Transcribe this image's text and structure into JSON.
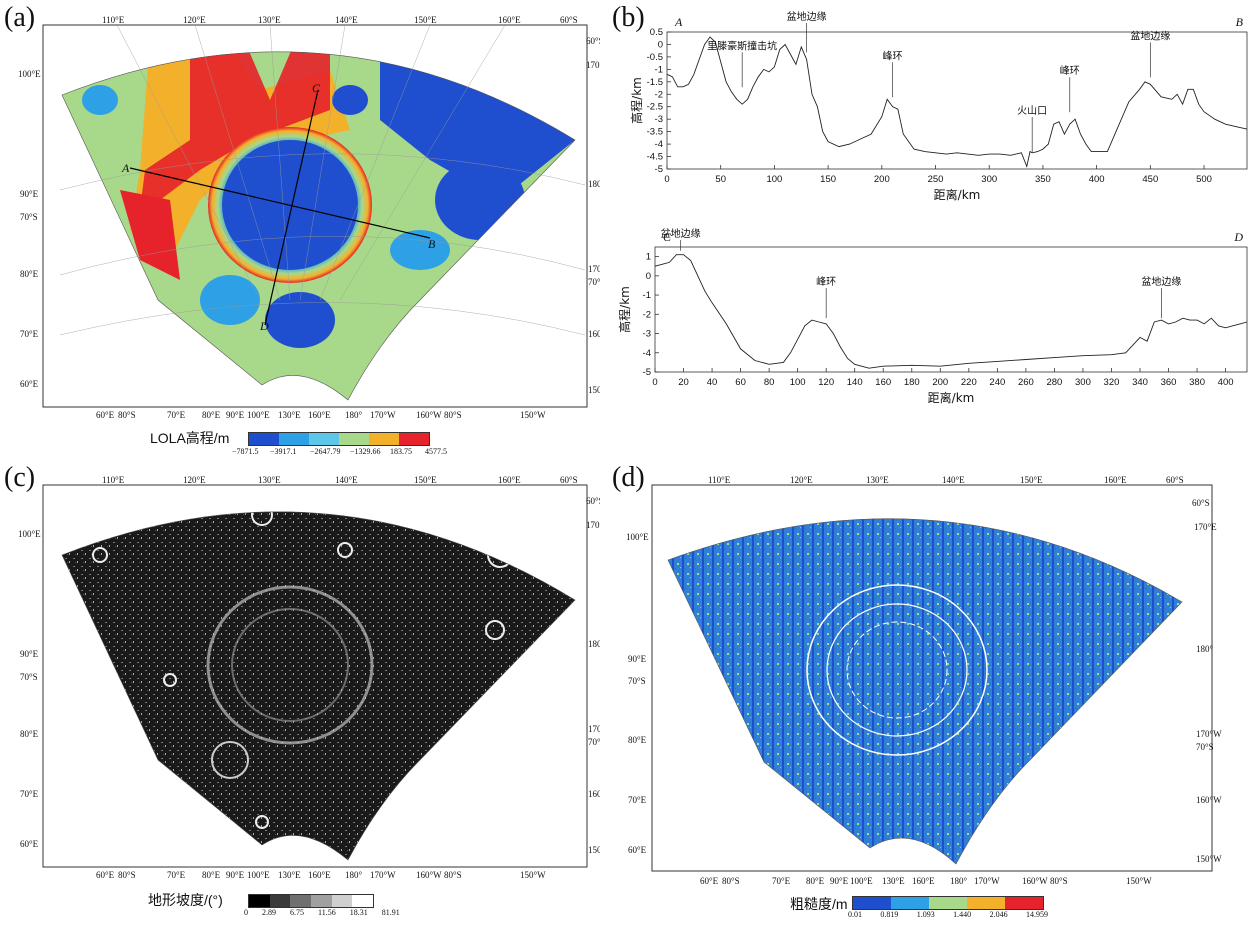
{
  "panels": {
    "a": {
      "letter": "(a)"
    },
    "b": {
      "letter": "(b)"
    },
    "c": {
      "letter": "(c)"
    },
    "d": {
      "letter": "(d)"
    }
  },
  "map_labels": {
    "top": [
      "110°E",
      "120°E",
      "130°E",
      "140°E",
      "150°E",
      "160°E",
      "60°S"
    ],
    "right": [
      "60°S",
      "170°E",
      "180°",
      "170°W",
      "70°S",
      "160°W",
      "150°W"
    ],
    "left": [
      "100°E",
      "90°E",
      "70°S",
      "80°E",
      "70°E",
      "60°E"
    ],
    "bottom": [
      "60°E",
      "80°S",
      "70°E",
      "80°E",
      "90°E",
      "100°E",
      "130°E",
      "160°E",
      "180°",
      "170°W",
      "160°W",
      "80°S",
      "150°W"
    ],
    "profile_ends": [
      "A",
      "B",
      "C",
      "D"
    ]
  },
  "colorbars": {
    "a": {
      "title": "LOLA高程/m",
      "ticks": [
        "−7871.5",
        "−3917.1",
        "−2647.79",
        "−1329.66",
        "183.75",
        "4577.5"
      ],
      "colors": [
        "#1f4fcf",
        "#2ea0e6",
        "#5cc7e8",
        "#a8d88a",
        "#f3b12b",
        "#e6222a"
      ]
    },
    "c": {
      "title": "地形坡度/(°)",
      "ticks": [
        "0",
        "2.89",
        "6.75",
        "11.56",
        "18.31",
        "81.91"
      ],
      "colors": [
        "#000000",
        "#3a3a3a",
        "#707070",
        "#a0a0a0",
        "#d0d0d0",
        "#ffffff"
      ]
    },
    "d": {
      "title": "粗糙度/m",
      "ticks": [
        "0.01",
        "0.819",
        "1.093",
        "1.440",
        "2.046",
        "14.959"
      ],
      "colors": [
        "#1f4fcf",
        "#2ea0e6",
        "#a8d88a",
        "#f3b12b",
        "#e6222a"
      ]
    }
  },
  "chart_data": [
    {
      "type": "line",
      "panel": "b-top",
      "start_label": "A",
      "end_label": "B",
      "xlabel": "距离/km",
      "ylabel": "高程/km",
      "xlim": [
        0,
        540
      ],
      "ylim": [
        -5,
        0.5
      ],
      "xticks": [
        0,
        50,
        100,
        150,
        200,
        250,
        300,
        350,
        400,
        450,
        500
      ],
      "yticks": [
        0.5,
        0,
        -0.5,
        -1,
        -1.5,
        -2,
        -2.5,
        -3,
        -3.5,
        -4,
        -4.5,
        -5
      ],
      "x": [
        0,
        5,
        10,
        15,
        20,
        25,
        30,
        35,
        40,
        45,
        50,
        55,
        60,
        65,
        70,
        75,
        80,
        85,
        90,
        95,
        100,
        105,
        110,
        115,
        120,
        125,
        130,
        135,
        140,
        145,
        150,
        160,
        170,
        180,
        190,
        200,
        205,
        210,
        215,
        220,
        230,
        240,
        250,
        260,
        270,
        280,
        290,
        300,
        310,
        320,
        330,
        335,
        338,
        340,
        345,
        350,
        355,
        360,
        365,
        370,
        375,
        380,
        385,
        390,
        395,
        400,
        410,
        420,
        430,
        440,
        445,
        450,
        460,
        470,
        475,
        480,
        485,
        490,
        495,
        500,
        510,
        520,
        530,
        540
      ],
      "y": [
        -1.2,
        -1.3,
        -1.7,
        -1.7,
        -1.6,
        -1.2,
        -0.6,
        0.0,
        0.3,
        0.1,
        -0.7,
        -1.5,
        -1.9,
        -2.2,
        -2.4,
        -2.2,
        -1.7,
        -1.3,
        -1.0,
        -1.1,
        -0.9,
        -0.2,
        0.0,
        -0.4,
        -0.8,
        -0.1,
        -0.6,
        -2.0,
        -2.5,
        -3.5,
        -3.9,
        -4.1,
        -4.0,
        -3.8,
        -3.6,
        -2.9,
        -2.2,
        -2.5,
        -2.6,
        -3.6,
        -4.2,
        -4.3,
        -4.35,
        -4.4,
        -4.35,
        -4.4,
        -4.45,
        -4.4,
        -4.4,
        -4.45,
        -4.35,
        -4.9,
        -4.3,
        -4.35,
        -4.3,
        -4.2,
        -4.0,
        -3.2,
        -3.1,
        -3.6,
        -3.2,
        -3.0,
        -3.6,
        -4.0,
        -4.3,
        -4.3,
        -4.3,
        -3.3,
        -2.3,
        -1.8,
        -1.5,
        -1.6,
        -2.1,
        -2.2,
        -2.0,
        -2.4,
        -1.8,
        -1.8,
        -2.4,
        -2.7,
        -3.0,
        -3.2,
        -3.3,
        -3.4
      ],
      "annotations": [
        {
          "text": "里滕豪斯撞击坑",
          "x": 70,
          "y": -1.8
        },
        {
          "text": "盆地边缘",
          "x": 130,
          "y": -0.4
        },
        {
          "text": "峰环",
          "x": 210,
          "y": -2.2
        },
        {
          "text": "火山口",
          "x": 340,
          "y": -4.4
        },
        {
          "text": "峰环",
          "x": 375,
          "y": -2.8
        },
        {
          "text": "盆地边缘",
          "x": 450,
          "y": -1.4
        }
      ]
    },
    {
      "type": "line",
      "panel": "b-bottom",
      "start_label": "C",
      "end_label": "D",
      "xlabel": "距离/km",
      "ylabel": "高程/km",
      "xlim": [
        0,
        415
      ],
      "ylim": [
        -5,
        1.5
      ],
      "xticks": [
        0,
        20,
        40,
        60,
        80,
        100,
        120,
        140,
        160,
        180,
        200,
        220,
        240,
        260,
        280,
        300,
        320,
        340,
        360,
        380,
        400
      ],
      "yticks": [
        1,
        0,
        -1,
        -2,
        -3,
        -4,
        -5
      ],
      "x": [
        0,
        5,
        10,
        15,
        20,
        25,
        30,
        35,
        40,
        50,
        60,
        70,
        80,
        90,
        95,
        100,
        105,
        110,
        115,
        120,
        125,
        130,
        135,
        140,
        150,
        160,
        180,
        200,
        220,
        240,
        260,
        280,
        300,
        320,
        330,
        340,
        345,
        350,
        355,
        360,
        365,
        370,
        375,
        380,
        385,
        390,
        395,
        400,
        405,
        410,
        415
      ],
      "y": [
        0.5,
        0.6,
        0.7,
        1.1,
        1.1,
        0.8,
        0.0,
        -0.8,
        -1.4,
        -2.5,
        -3.8,
        -4.4,
        -4.6,
        -4.5,
        -4.0,
        -3.3,
        -2.6,
        -2.3,
        -2.4,
        -2.5,
        -3.0,
        -3.7,
        -4.3,
        -4.6,
        -4.8,
        -4.7,
        -4.65,
        -4.7,
        -4.55,
        -4.45,
        -4.35,
        -4.25,
        -4.15,
        -4.1,
        -4.0,
        -3.2,
        -3.4,
        -2.4,
        -2.3,
        -2.5,
        -2.4,
        -2.2,
        -2.3,
        -2.3,
        -2.5,
        -2.2,
        -2.6,
        -2.7,
        -2.6,
        -2.5,
        -2.4
      ],
      "annotations": [
        {
          "text": "盆地边缘",
          "x": 18,
          "y": 1.2
        },
        {
          "text": "峰环",
          "x": 120,
          "y": -2.3
        },
        {
          "text": "盆地边缘",
          "x": 355,
          "y": -2.3
        }
      ]
    }
  ]
}
